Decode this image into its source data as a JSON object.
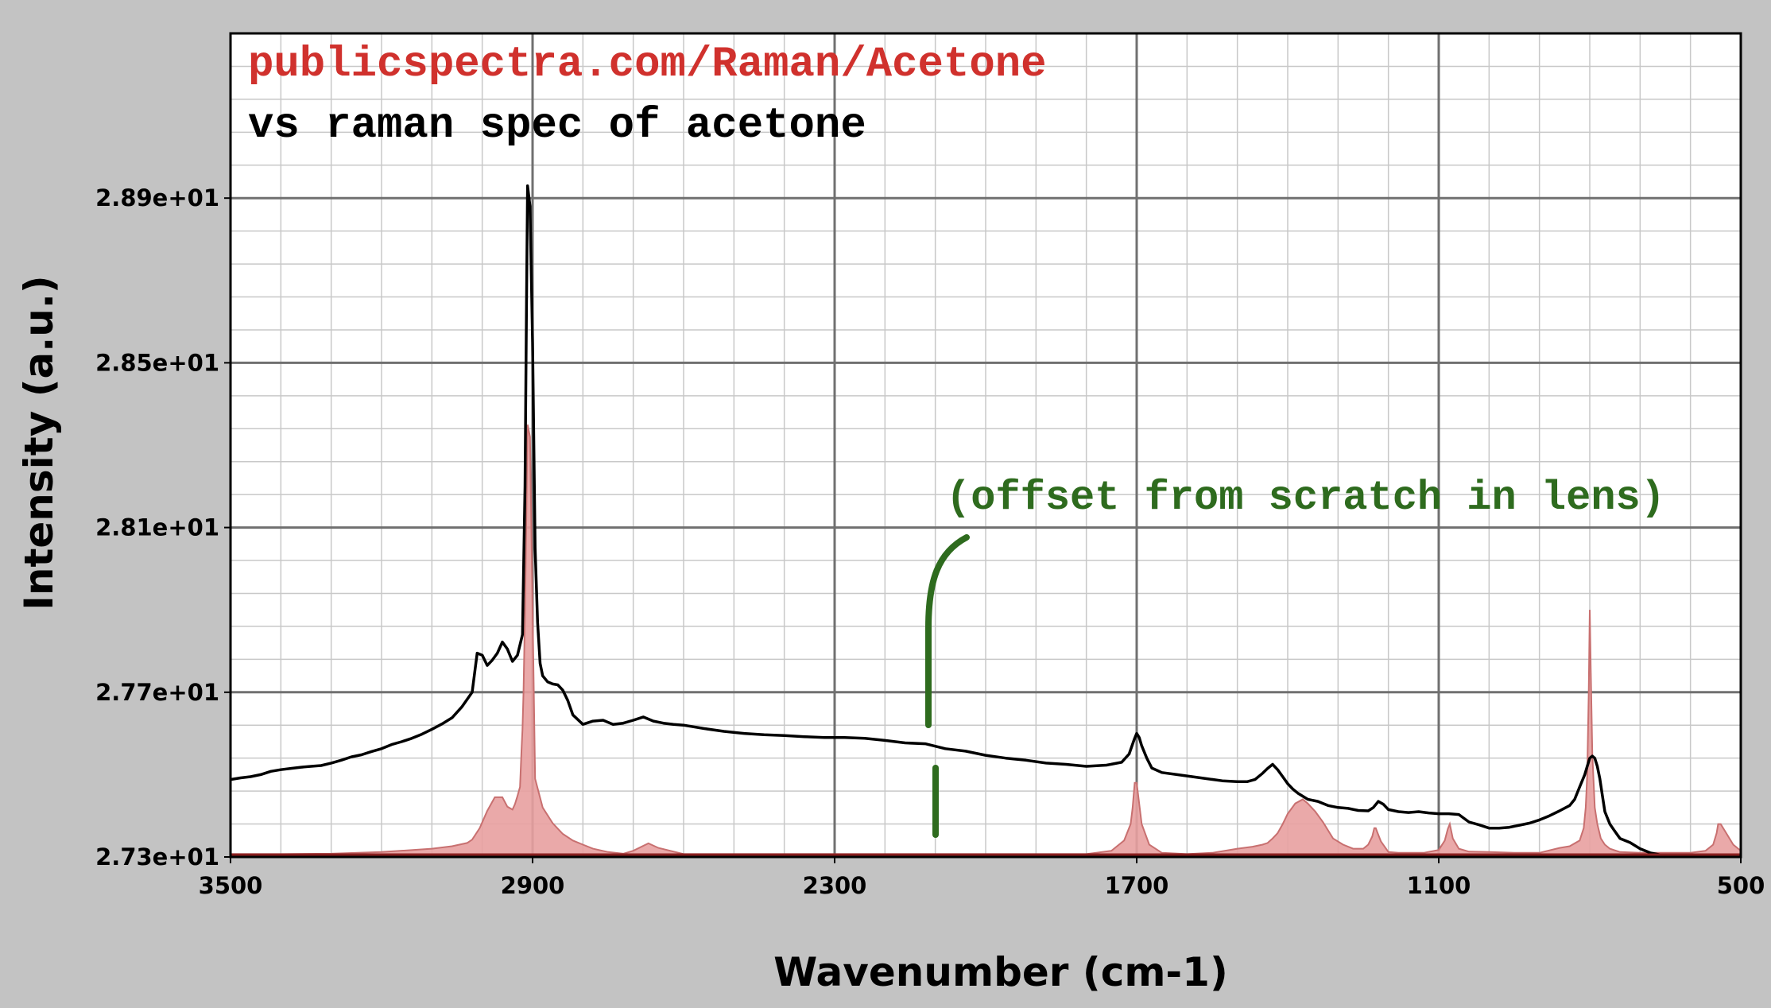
{
  "colors": {
    "background": "#c3c3c3",
    "plot_background": "#ffffff",
    "reference_fill": "#e8a0a0",
    "reference_stroke": "#c87070",
    "measured_line": "#000000",
    "title_source": "#d0312d",
    "annotation": "#2e6b1e"
  },
  "chart_data": {
    "type": "line",
    "title": "publicspectra.com/Raman/Acetone",
    "subtitle": "vs raman spec of acetone",
    "xlabel": "Wavenumber (cm-1)",
    "ylabel": "Intensity (a.u.)",
    "xlim": [
      3500,
      500
    ],
    "ylim": [
      27.3,
      29.3
    ],
    "x_reversed": true,
    "grid": true,
    "x_ticks": [
      "3500",
      "2900",
      "2300",
      "1700",
      "1100",
      "500"
    ],
    "x_tick_values": [
      3500,
      2900,
      2300,
      1700,
      1100,
      500
    ],
    "y_ticks": [
      "2.73e+01",
      "2.77e+01",
      "2.81e+01",
      "2.85e+01",
      "2.89e+01"
    ],
    "y_tick_values": [
      27.3,
      27.7,
      28.1,
      28.5,
      28.9
    ],
    "annotation": {
      "text": "(offset from scratch in lens)"
    },
    "series": [
      {
        "style": "filled-area",
        "x": [
          3500,
          3400,
          3300,
          3200,
          3100,
          3060,
          3030,
          3020,
          3005,
          2990,
          2975,
          2960,
          2950,
          2940,
          2935,
          2930,
          2925,
          2922,
          2920,
          2918,
          2915,
          2910,
          2905,
          2900,
          2895,
          2880,
          2860,
          2840,
          2820,
          2800,
          2780,
          2750,
          2720,
          2700,
          2670,
          2650,
          2600,
          2500,
          2400,
          2300,
          2200,
          2100,
          2000,
          1900,
          1800,
          1750,
          1725,
          1712,
          1708,
          1704,
          1700,
          1690,
          1675,
          1650,
          1600,
          1550,
          1500,
          1470,
          1450,
          1440,
          1430,
          1420,
          1410,
          1400,
          1385,
          1370,
          1360,
          1345,
          1330,
          1310,
          1290,
          1270,
          1250,
          1240,
          1232,
          1228,
          1225,
          1222,
          1215,
          1200,
          1180,
          1130,
          1100,
          1088,
          1082,
          1078,
          1072,
          1060,
          1040,
          1000,
          950,
          900,
          880,
          860,
          840,
          820,
          812,
          808,
          805,
          802,
          800,
          798,
          795,
          790,
          785,
          778,
          770,
          760,
          740,
          700,
          650,
          600,
          570,
          555,
          548,
          545,
          540,
          530,
          515,
          500
        ],
        "values": [
          27.307,
          27.307,
          27.308,
          27.312,
          27.32,
          27.326,
          27.334,
          27.342,
          27.37,
          27.412,
          27.445,
          27.445,
          27.422,
          27.415,
          27.428,
          27.448,
          27.47,
          27.56,
          27.61,
          27.7,
          27.9,
          28.35,
          28.32,
          27.9,
          27.49,
          27.42,
          27.382,
          27.356,
          27.34,
          27.33,
          27.32,
          27.312,
          27.308,
          27.315,
          27.333,
          27.322,
          27.307,
          27.307,
          27.307,
          27.307,
          27.307,
          27.307,
          27.307,
          27.307,
          27.307,
          27.315,
          27.34,
          27.38,
          27.42,
          27.48,
          27.48,
          27.38,
          27.33,
          27.31,
          27.307,
          27.31,
          27.32,
          27.325,
          27.33,
          27.334,
          27.345,
          27.358,
          27.38,
          27.405,
          27.43,
          27.44,
          27.43,
          27.41,
          27.385,
          27.345,
          27.33,
          27.32,
          27.32,
          27.33,
          27.35,
          27.37,
          27.37,
          27.36,
          27.338,
          27.312,
          27.31,
          27.31,
          27.317,
          27.34,
          27.368,
          27.38,
          27.345,
          27.32,
          27.313,
          27.312,
          27.31,
          27.31,
          27.316,
          27.322,
          27.326,
          27.34,
          27.37,
          27.42,
          27.5,
          27.7,
          27.9,
          27.75,
          27.55,
          27.42,
          27.38,
          27.345,
          27.33,
          27.32,
          27.312,
          27.31,
          27.31,
          27.31,
          27.315,
          27.33,
          27.358,
          27.38,
          27.38,
          27.36,
          27.33,
          27.315
        ]
      },
      {
        "style": "line",
        "x": [
          3500,
          3480,
          3460,
          3440,
          3420,
          3400,
          3380,
          3360,
          3340,
          3320,
          3300,
          3280,
          3260,
          3240,
          3220,
          3200,
          3180,
          3160,
          3140,
          3120,
          3100,
          3080,
          3060,
          3040,
          3020,
          3010,
          3000,
          2990,
          2980,
          2970,
          2960,
          2950,
          2940,
          2930,
          2920,
          2915,
          2912,
          2910,
          2905,
          2900,
          2895,
          2890,
          2885,
          2880,
          2870,
          2860,
          2850,
          2840,
          2830,
          2820,
          2800,
          2780,
          2760,
          2740,
          2720,
          2700,
          2680,
          2660,
          2640,
          2620,
          2600,
          2560,
          2520,
          2480,
          2440,
          2400,
          2360,
          2320,
          2280,
          2240,
          2200,
          2160,
          2120,
          2080,
          2040,
          2000,
          1960,
          1920,
          1880,
          1840,
          1800,
          1760,
          1730,
          1715,
          1705,
          1700,
          1695,
          1690,
          1680,
          1670,
          1650,
          1620,
          1590,
          1560,
          1530,
          1500,
          1480,
          1465,
          1450,
          1440,
          1430,
          1420,
          1410,
          1400,
          1390,
          1380,
          1360,
          1340,
          1320,
          1300,
          1280,
          1260,
          1240,
          1230,
          1220,
          1210,
          1200,
          1180,
          1160,
          1140,
          1120,
          1100,
          1080,
          1060,
          1040,
          1020,
          1000,
          980,
          960,
          940,
          920,
          900,
          880,
          860,
          840,
          830,
          820,
          810,
          805,
          800,
          795,
          790,
          785,
          780,
          775,
          770,
          760,
          750,
          740,
          720,
          700,
          680,
          660,
          650
        ],
        "values": [
          27.488,
          27.492,
          27.495,
          27.5,
          27.508,
          27.512,
          27.515,
          27.518,
          27.52,
          27.522,
          27.528,
          27.535,
          27.543,
          27.548,
          27.556,
          27.563,
          27.573,
          27.58,
          27.588,
          27.598,
          27.61,
          27.623,
          27.638,
          27.665,
          27.7,
          27.795,
          27.79,
          27.765,
          27.778,
          27.795,
          27.822,
          27.805,
          27.775,
          27.79,
          27.84,
          28.2,
          28.65,
          28.93,
          28.88,
          28.55,
          28.05,
          27.87,
          27.77,
          27.74,
          27.725,
          27.72,
          27.718,
          27.705,
          27.68,
          27.645,
          27.622,
          27.63,
          27.632,
          27.622,
          27.625,
          27.632,
          27.64,
          27.63,
          27.625,
          27.622,
          27.62,
          27.612,
          27.605,
          27.6,
          27.597,
          27.595,
          27.592,
          27.59,
          27.59,
          27.588,
          27.583,
          27.577,
          27.575,
          27.563,
          27.557,
          27.547,
          27.54,
          27.535,
          27.528,
          27.525,
          27.52,
          27.523,
          27.53,
          27.55,
          27.585,
          27.6,
          27.59,
          27.57,
          27.54,
          27.516,
          27.505,
          27.5,
          27.495,
          27.49,
          27.485,
          27.483,
          27.483,
          27.488,
          27.503,
          27.515,
          27.525,
          27.512,
          27.495,
          27.478,
          27.465,
          27.455,
          27.44,
          27.435,
          27.425,
          27.42,
          27.418,
          27.413,
          27.412,
          27.42,
          27.435,
          27.428,
          27.415,
          27.41,
          27.408,
          27.41,
          27.407,
          27.405,
          27.405,
          27.403,
          27.385,
          27.378,
          27.37,
          27.37,
          27.372,
          27.377,
          27.382,
          27.39,
          27.4,
          27.412,
          27.425,
          27.44,
          27.47,
          27.5,
          27.52,
          27.54,
          27.545,
          27.54,
          27.52,
          27.49,
          27.45,
          27.41,
          27.38,
          27.362,
          27.345,
          27.335,
          27.32,
          27.31,
          27.305,
          27.3
        ]
      }
    ]
  }
}
